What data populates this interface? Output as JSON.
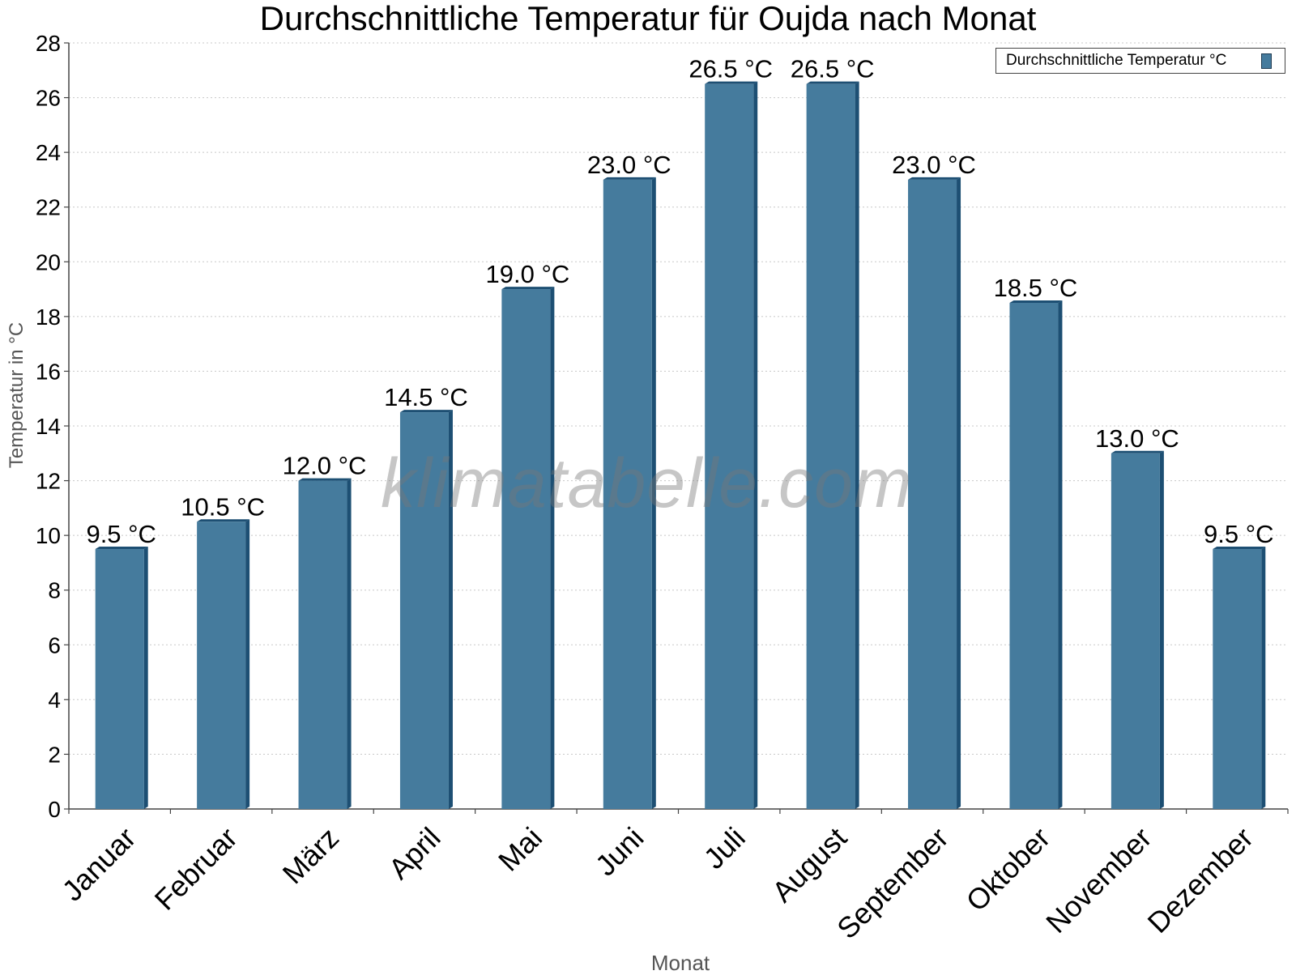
{
  "chart_data": {
    "type": "bar",
    "title": "Durchschnittliche Temperatur für Oujda nach Monat",
    "xlabel": "Monat",
    "ylabel": "Temperatur in °C",
    "categories": [
      "Januar",
      "Februar",
      "März",
      "April",
      "Mai",
      "Juni",
      "Juli",
      "August",
      "September",
      "Oktober",
      "November",
      "Dezember"
    ],
    "series": [
      {
        "name": "Durchschnittliche Temperatur °C",
        "values": [
          9.5,
          10.5,
          12.0,
          14.5,
          19.0,
          23.0,
          26.5,
          26.5,
          23.0,
          18.5,
          13.0,
          9.5
        ],
        "color": "#457b9d"
      }
    ],
    "data_labels": [
      "9.5 °C",
      "10.5 °C",
      "12.0 °C",
      "14.5 °C",
      "19.0 °C",
      "23.0 °C",
      "26.5 °C",
      "26.5 °C",
      "23.0 °C",
      "18.5 °C",
      "13.0 °C",
      "9.5 °C"
    ],
    "ylim": [
      0,
      28
    ],
    "yticks": [
      0,
      2,
      4,
      6,
      8,
      10,
      12,
      14,
      16,
      18,
      20,
      22,
      24,
      26,
      28
    ],
    "grid": true,
    "legend_position": "top-right"
  },
  "watermark": "klimatabelle.com",
  "colors": {
    "bar": "#457b9d",
    "bar_edge": "#1d4f73",
    "grid": "#c8c8c8"
  }
}
